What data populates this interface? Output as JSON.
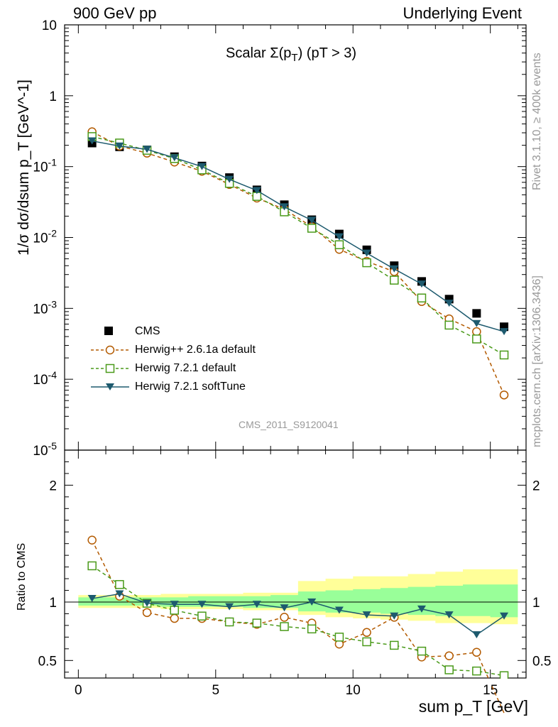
{
  "header": {
    "left": "900 GeV pp",
    "right": "Underlying Event"
  },
  "plot_title": {
    "main": "Scalar Σ(p",
    "sub": "T",
    "tail": ") (pT > 3)"
  },
  "side_text": {
    "rivet": "Rivet 3.1.10, ≥ 400k events",
    "mcplots": "mcplots.cern.ch [arXiv:1306.3436]"
  },
  "watermark": "CMS_2011_S9120041",
  "axes": {
    "ylabel_top": "1/σ dσ/dsum p_T [GeV^-1]",
    "ylabel_bottom": "Ratio to CMS",
    "xlabel": "sum p_T [GeV]"
  },
  "chart_data": {
    "type": "scatter",
    "title": "Scalar Σ(pT) (pT > 3)",
    "x": [
      0.5,
      1.5,
      2.5,
      3.5,
      4.5,
      5.5,
      6.5,
      7.5,
      8.5,
      9.5,
      10.5,
      11.5,
      12.5,
      13.5,
      14.5,
      15.5
    ],
    "xlim": [
      -0.5,
      16.3
    ],
    "ylim_top": [
      1e-05,
      10
    ],
    "yscale_top": "log",
    "ylim_bottom": [
      0.35,
      2.3
    ],
    "x_ticks": [
      0,
      5,
      10,
      15
    ],
    "y_ticks_top": [
      "10^-5",
      "10^-4",
      "10^-3",
      "10^-2",
      "10^-1",
      "1",
      "10"
    ],
    "y_ticks_bottom": [
      0.5,
      1,
      2
    ],
    "legend": "lower-left",
    "series": [
      {
        "name": "CMS",
        "color": "#000000",
        "marker": "square",
        "values": [
          0.215,
          0.19,
          0.172,
          0.138,
          0.102,
          0.07,
          0.047,
          0.029,
          0.0178,
          0.0112,
          0.0067,
          0.004,
          0.0024,
          0.00135,
          0.00085,
          0.00055
        ],
        "ratio": [
          1,
          1,
          1,
          1,
          1,
          1,
          1,
          1,
          1,
          1,
          1,
          1,
          1,
          1,
          1,
          1
        ]
      },
      {
        "name": "Herwig++ 2.6.1a default",
        "color": "#b35a00",
        "marker": "circle",
        "line": "dashed",
        "values": [
          0.31,
          0.195,
          0.155,
          0.116,
          0.086,
          0.056,
          0.036,
          0.025,
          0.0142,
          0.0068,
          0.0046,
          0.0033,
          0.00125,
          0.00071,
          0.00047,
          6e-05
        ],
        "ratio": [
          1.53,
          1.05,
          0.91,
          0.86,
          0.86,
          0.83,
          0.81,
          0.87,
          0.82,
          0.64,
          0.74,
          0.87,
          0.53,
          0.54,
          0.57,
          0.05
        ]
      },
      {
        "name": "Herwig 7.2.1 default",
        "color": "#4a9a1a",
        "marker": "open-square",
        "line": "dashed",
        "values": [
          0.265,
          0.215,
          0.17,
          0.13,
          0.09,
          0.058,
          0.038,
          0.023,
          0.0135,
          0.0079,
          0.0044,
          0.0025,
          0.0014,
          0.00058,
          0.00037,
          0.00022
        ],
        "ratio": [
          1.31,
          1.15,
          0.99,
          0.93,
          0.88,
          0.83,
          0.82,
          0.79,
          0.77,
          0.7,
          0.66,
          0.63,
          0.58,
          0.42,
          0.41,
          0.37
        ]
      },
      {
        "name": "Herwig 7.2.1 softTune",
        "color": "#1d5a6e",
        "marker": "triangle-down",
        "line": "solid",
        "values": [
          0.23,
          0.195,
          0.175,
          0.133,
          0.1,
          0.066,
          0.046,
          0.027,
          0.0175,
          0.0102,
          0.006,
          0.0036,
          0.0022,
          0.00118,
          0.00061,
          0.00047
        ],
        "ratio": [
          1.03,
          1.07,
          0.99,
          0.98,
          0.98,
          0.96,
          0.98,
          0.95,
          1.0,
          0.93,
          0.89,
          0.88,
          0.94,
          0.89,
          0.72,
          0.88
        ]
      }
    ],
    "bands": {
      "yellow": [
        [
          0.95,
          1.06
        ],
        [
          0.95,
          1.06
        ],
        [
          0.95,
          1.06
        ],
        [
          0.94,
          1.07
        ],
        [
          0.94,
          1.07
        ],
        [
          0.94,
          1.07
        ],
        [
          0.93,
          1.08
        ],
        [
          0.93,
          1.08
        ],
        [
          0.89,
          1.18
        ],
        [
          0.87,
          1.2
        ],
        [
          0.86,
          1.22
        ],
        [
          0.85,
          1.22
        ],
        [
          0.84,
          1.24
        ],
        [
          0.82,
          1.26
        ],
        [
          0.82,
          1.28
        ],
        [
          0.81,
          1.28
        ]
      ],
      "green": [
        [
          0.97,
          1.04
        ],
        [
          0.97,
          1.04
        ],
        [
          0.97,
          1.04
        ],
        [
          0.96,
          1.04
        ],
        [
          0.96,
          1.05
        ],
        [
          0.96,
          1.05
        ],
        [
          0.95,
          1.05
        ],
        [
          0.95,
          1.06
        ],
        [
          0.92,
          1.09
        ],
        [
          0.91,
          1.1
        ],
        [
          0.91,
          1.11
        ],
        [
          0.9,
          1.12
        ],
        [
          0.89,
          1.13
        ],
        [
          0.88,
          1.14
        ],
        [
          0.88,
          1.15
        ],
        [
          0.87,
          1.15
        ]
      ]
    },
    "colors": {
      "yellow_band": "#ffff99",
      "green_band": "#99ff99"
    }
  }
}
